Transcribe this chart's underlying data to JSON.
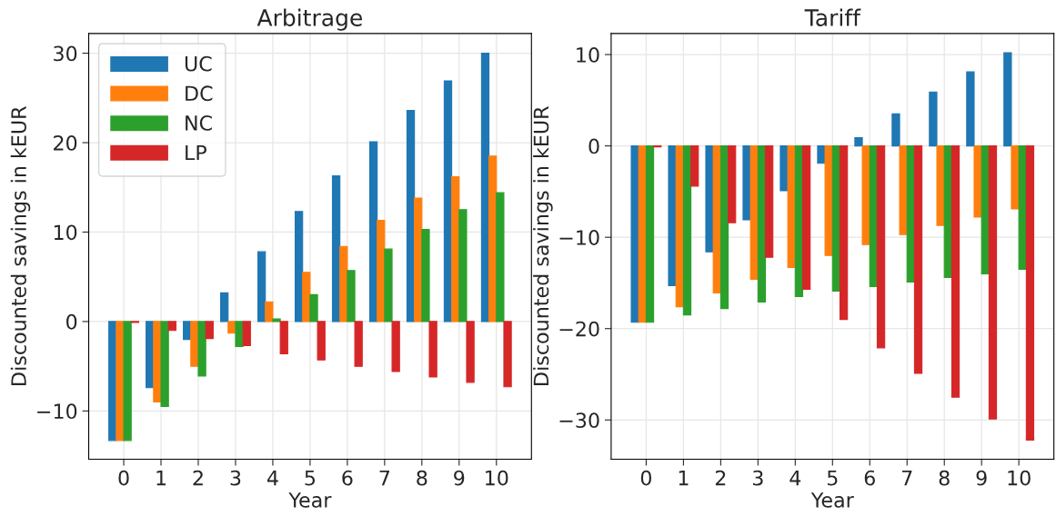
{
  "chart_data": [
    {
      "type": "bar",
      "title": "Arbitrage",
      "xlabel": "Year",
      "ylabel": "Discounted savings in kEUR",
      "categories": [
        "0",
        "1",
        "2",
        "3",
        "4",
        "5",
        "6",
        "7",
        "8",
        "9",
        "10"
      ],
      "series": [
        {
          "name": "UC",
          "color": "#1f77b4",
          "values": [
            -13.3,
            -7.4,
            -2.0,
            3.2,
            7.8,
            12.3,
            16.3,
            20.1,
            23.6,
            26.9,
            30.0
          ]
        },
        {
          "name": "DC",
          "color": "#ff7f0e",
          "values": [
            -13.3,
            -9.0,
            -5.0,
            -1.3,
            2.2,
            5.5,
            8.4,
            11.3,
            13.8,
            16.2,
            18.5
          ]
        },
        {
          "name": "NC",
          "color": "#2ca02c",
          "values": [
            -13.3,
            -9.5,
            -6.1,
            -2.8,
            0.3,
            3.0,
            5.7,
            8.1,
            10.3,
            12.5,
            14.4
          ]
        },
        {
          "name": "LP",
          "color": "#d62728",
          "values": [
            -0.1,
            -1.0,
            -1.9,
            -2.7,
            -3.6,
            -4.3,
            -5.0,
            -5.6,
            -6.2,
            -6.8,
            -7.3
          ]
        }
      ],
      "ylim": [
        -15.4,
        32.2
      ],
      "yticks": [
        {
          "value": -10,
          "label": "−10"
        },
        0,
        10,
        20,
        30
      ],
      "grid": true,
      "legend": "top left"
    },
    {
      "type": "bar",
      "title": "Tariff",
      "xlabel": "Year",
      "ylabel": "Discounted savings in kEUR",
      "categories": [
        "0",
        "1",
        "2",
        "3",
        "4",
        "5",
        "6",
        "7",
        "8",
        "9",
        "10"
      ],
      "series": [
        {
          "color": "#1f77b4",
          "values": [
            -19.3,
            -15.3,
            -11.6,
            -8.1,
            -4.9,
            -1.9,
            0.9,
            3.5,
            5.9,
            8.1,
            10.2
          ]
        },
        {
          "color": "#ff7f0e",
          "values": [
            -19.3,
            -17.6,
            -16.1,
            -14.6,
            -13.3,
            -12.0,
            -10.8,
            -9.7,
            -8.7,
            -7.8,
            -6.9
          ]
        },
        {
          "color": "#2ca02c",
          "values": [
            -19.3,
            -18.5,
            -17.8,
            -17.1,
            -16.5,
            -15.9,
            -15.4,
            -14.9,
            -14.4,
            -14.0,
            -13.5
          ]
        },
        {
          "color": "#d62728",
          "values": [
            -0.1,
            -4.4,
            -8.4,
            -12.2,
            -15.7,
            -19.0,
            -22.1,
            -24.9,
            -27.5,
            -29.9,
            -32.2
          ]
        }
      ],
      "ylim": [
        -34.3,
        12.3
      ],
      "yticks": [
        {
          "value": -30,
          "label": "−30"
        },
        {
          "value": -20,
          "label": "−20"
        },
        {
          "value": -10,
          "label": "−10"
        },
        0,
        10
      ],
      "grid": true
    }
  ]
}
